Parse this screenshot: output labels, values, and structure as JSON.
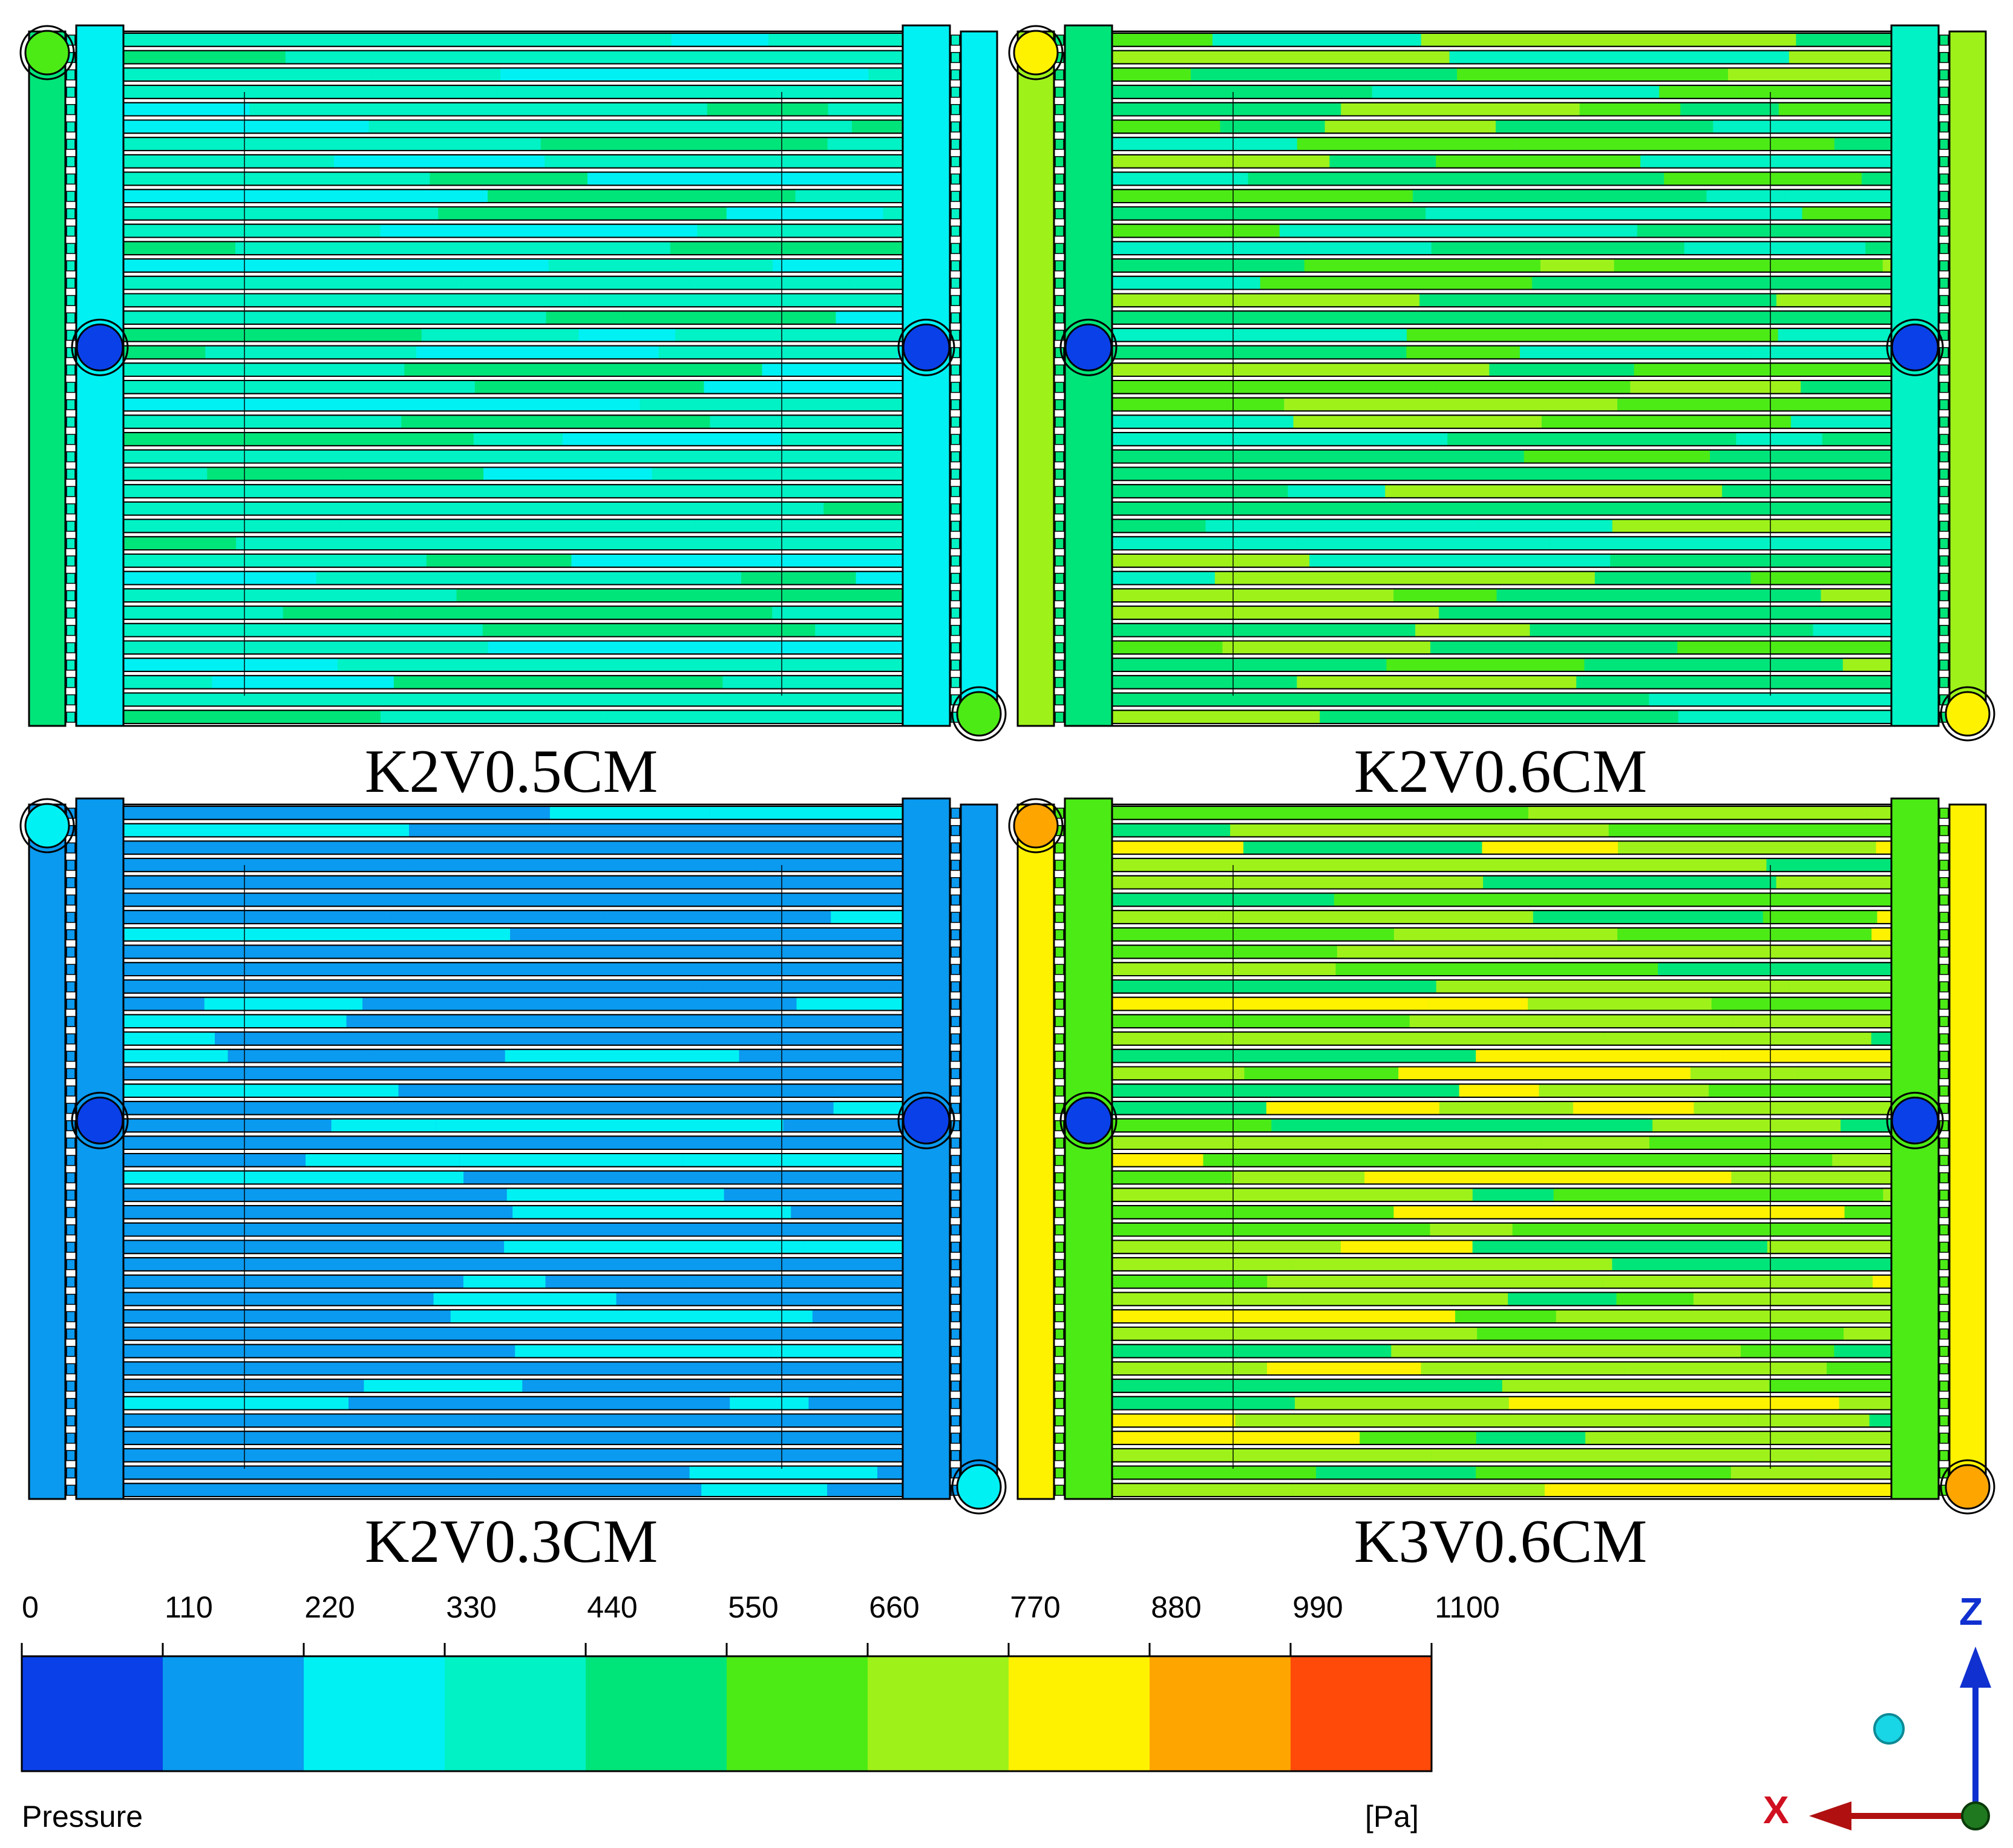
{
  "panels": [
    {
      "caption": "K2V0.5CM",
      "base": "#00F2C5",
      "mix": [
        "#00F2C5",
        "#00F2C5",
        "#00F2C5",
        "#00E57A",
        "#00F1F3"
      ],
      "header_left": "#00E57A",
      "header_right": "#00F1F3",
      "collector_left": "#00F1F3",
      "collector_right": "#00F1F3",
      "port_top": "#4CEB16",
      "port_bottom": "#4CEB16",
      "outlet_mid": "#0A40E8"
    },
    {
      "caption": "K2V0.6CM",
      "base": "#00E57A",
      "mix": [
        "#00E57A",
        "#4CEB16",
        "#00E57A",
        "#00F2C5",
        "#9EF21A"
      ],
      "header_left": "#9EF21A",
      "header_right": "#9EF21A",
      "collector_left": "#00E57A",
      "collector_right": "#00F2C5",
      "port_top": "#FFF200",
      "port_bottom": "#FFF200",
      "outlet_mid": "#0A40E8"
    },
    {
      "caption": "K2V0.3CM",
      "base": "#0A9AEF",
      "mix": [
        "#0A9AEF",
        "#0A9AEF",
        "#0A9AEF",
        "#0A9AEF",
        "#00F1F3"
      ],
      "header_left": "#0A9AEF",
      "header_right": "#0A9AEF",
      "collector_left": "#0A9AEF",
      "collector_right": "#0A9AEF",
      "port_top": "#00F1F3",
      "port_bottom": "#00F1F3",
      "outlet_mid": "#0A40E8"
    },
    {
      "caption": "K3V0.6CM",
      "base": "#4CEB16",
      "mix": [
        "#4CEB16",
        "#9EF21A",
        "#00E57A",
        "#9EF21A",
        "#FFF200"
      ],
      "header_left": "#FFF200",
      "header_right": "#FFF200",
      "collector_left": "#4CEB16",
      "collector_right": "#4CEB16",
      "port_top": "#FFA500",
      "port_bottom": "#FFA500",
      "outlet_mid": "#0A40E8"
    }
  ],
  "legend": {
    "title": "Pressure",
    "unit": "[Pa]",
    "ticks": [
      "0",
      "110",
      "220",
      "330",
      "440",
      "550",
      "660",
      "770",
      "880",
      "990",
      "1100"
    ],
    "colors": [
      "#0A40E8",
      "#0A9AEF",
      "#00F1F3",
      "#00F2C5",
      "#00E57A",
      "#4CEB16",
      "#9EF21A",
      "#FFF200",
      "#FFA500",
      "#FF4A0A"
    ]
  },
  "axes": {
    "z_label": "Z",
    "x_label": "X",
    "z_color": "#1030D0",
    "x_color": "#D01020"
  }
}
